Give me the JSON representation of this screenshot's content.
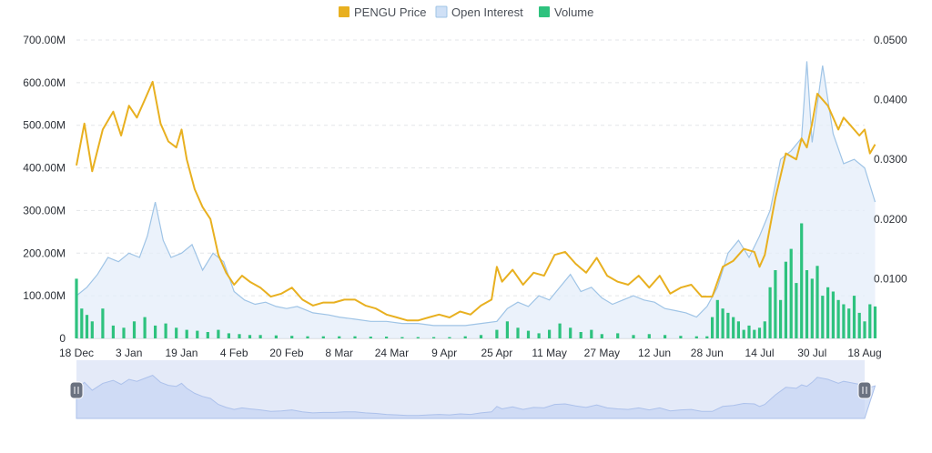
{
  "chart_data": {
    "type": "line",
    "legend": [
      {
        "label": "PENGU Price",
        "color": "#e8b020"
      },
      {
        "label": "Open Interest",
        "color": "#b9d3f2"
      },
      {
        "label": "Volume",
        "color": "#2ec27e"
      }
    ],
    "legend_position": "top-center",
    "x_ticks": [
      "18 Dec",
      "3 Jan",
      "19 Jan",
      "4 Feb",
      "20 Feb",
      "8 Mar",
      "24 Mar",
      "9 Apr",
      "25 Apr",
      "11 May",
      "27 May",
      "12 Jun",
      "28 Jun",
      "14 Jul",
      "30 Jul",
      "18 Aug"
    ],
    "y_left_ticks": [
      "0",
      "100.00M",
      "200.00M",
      "300.00M",
      "400.00M",
      "500.00M",
      "600.00M",
      "700.00M"
    ],
    "y_left_range": [
      0,
      700000000
    ],
    "y_right_ticks": [
      "0.0100",
      "0.0200",
      "0.0300",
      "0.0400",
      "0.0500"
    ],
    "y_right_range": [
      0,
      0.05
    ],
    "grid": "horizontal-dashed",
    "series": [
      {
        "name": "PENGU Price",
        "type": "line",
        "axis": "right",
        "color": "#e8b020",
        "x_ticks_index": [
          0,
          0.15,
          0.3,
          0.5,
          0.7,
          0.85,
          1.0,
          1.15,
          1.3,
          1.45,
          1.6,
          1.75,
          1.9,
          2.0,
          2.1,
          2.25,
          2.4,
          2.55,
          2.7,
          2.85,
          3.0,
          3.15,
          3.3,
          3.5,
          3.7,
          3.9,
          4.1,
          4.3,
          4.5,
          4.7,
          4.9,
          5.1,
          5.3,
          5.5,
          5.7,
          5.9,
          6.1,
          6.3,
          6.5,
          6.7,
          6.9,
          7.1,
          7.3,
          7.5,
          7.7,
          7.9,
          8.0,
          8.1,
          8.3,
          8.5,
          8.7,
          8.9,
          9.1,
          9.3,
          9.5,
          9.7,
          9.9,
          10.1,
          10.3,
          10.5,
          10.7,
          10.9,
          11.1,
          11.3,
          11.5,
          11.7,
          11.9,
          12.1,
          12.3,
          12.5,
          12.7,
          12.9,
          13.0,
          13.1,
          13.3,
          13.5,
          13.7,
          13.8,
          13.9,
          14.0,
          14.1,
          14.3,
          14.5,
          14.6,
          14.7,
          14.9,
          15.0,
          15.1,
          15.2
        ],
        "values": [
          0.029,
          0.036,
          0.028,
          0.035,
          0.038,
          0.034,
          0.039,
          0.037,
          0.04,
          0.043,
          0.036,
          0.033,
          0.032,
          0.035,
          0.03,
          0.025,
          0.022,
          0.02,
          0.014,
          0.011,
          0.009,
          0.0105,
          0.0095,
          0.0085,
          0.007,
          0.0075,
          0.0085,
          0.0065,
          0.0055,
          0.006,
          0.006,
          0.0065,
          0.0065,
          0.0055,
          0.005,
          0.004,
          0.0035,
          0.003,
          0.003,
          0.0035,
          0.004,
          0.0035,
          0.0045,
          0.004,
          0.0055,
          0.0065,
          0.012,
          0.0095,
          0.0115,
          0.009,
          0.011,
          0.0105,
          0.014,
          0.0145,
          0.0125,
          0.011,
          0.0135,
          0.0105,
          0.0095,
          0.009,
          0.0105,
          0.0085,
          0.0105,
          0.0075,
          0.0085,
          0.009,
          0.007,
          0.007,
          0.012,
          0.013,
          0.015,
          0.0145,
          0.012,
          0.014,
          0.0235,
          0.031,
          0.03,
          0.0335,
          0.032,
          0.036,
          0.041,
          0.039,
          0.035,
          0.037,
          0.036,
          0.034,
          0.035,
          0.031,
          0.0325
        ]
      },
      {
        "name": "Open Interest",
        "type": "area",
        "axis": "left",
        "color": "#9fc4e6",
        "x_ticks_index": [
          0,
          0.2,
          0.4,
          0.6,
          0.8,
          1.0,
          1.2,
          1.35,
          1.5,
          1.65,
          1.8,
          2.0,
          2.2,
          2.4,
          2.6,
          2.8,
          3.0,
          3.2,
          3.4,
          3.6,
          3.8,
          4.0,
          4.2,
          4.5,
          4.8,
          5.0,
          5.3,
          5.6,
          5.9,
          6.2,
          6.5,
          6.8,
          7.1,
          7.4,
          7.7,
          8.0,
          8.2,
          8.4,
          8.6,
          8.8,
          9.0,
          9.2,
          9.4,
          9.6,
          9.8,
          10.0,
          10.2,
          10.4,
          10.6,
          10.8,
          11.0,
          11.2,
          11.4,
          11.6,
          11.8,
          12.0,
          12.2,
          12.4,
          12.6,
          12.8,
          13.0,
          13.2,
          13.4,
          13.6,
          13.8,
          13.9,
          14.0,
          14.2,
          14.4,
          14.6,
          14.8,
          15.0,
          15.2
        ],
        "values": [
          100000000,
          120000000,
          150000000,
          190000000,
          180000000,
          200000000,
          190000000,
          240000000,
          320000000,
          230000000,
          190000000,
          200000000,
          220000000,
          160000000,
          200000000,
          180000000,
          110000000,
          90000000,
          80000000,
          85000000,
          75000000,
          70000000,
          75000000,
          60000000,
          55000000,
          50000000,
          45000000,
          40000000,
          40000000,
          35000000,
          35000000,
          30000000,
          30000000,
          30000000,
          35000000,
          40000000,
          70000000,
          85000000,
          75000000,
          100000000,
          90000000,
          120000000,
          150000000,
          110000000,
          120000000,
          95000000,
          80000000,
          90000000,
          100000000,
          90000000,
          85000000,
          70000000,
          65000000,
          60000000,
          50000000,
          75000000,
          120000000,
          200000000,
          230000000,
          190000000,
          240000000,
          300000000,
          420000000,
          440000000,
          470000000,
          650000000,
          460000000,
          640000000,
          480000000,
          410000000,
          420000000,
          400000000,
          320000000,
          350000000
        ]
      },
      {
        "name": "Volume",
        "type": "bar",
        "axis": "left",
        "color": "#2ec27e",
        "x_ticks_index": [
          0,
          0.1,
          0.2,
          0.3,
          0.5,
          0.7,
          0.9,
          1.1,
          1.3,
          1.5,
          1.7,
          1.9,
          2.1,
          2.3,
          2.5,
          2.7,
          2.9,
          3.1,
          3.3,
          3.5,
          3.8,
          4.1,
          4.4,
          4.7,
          5.0,
          5.3,
          5.6,
          5.9,
          6.2,
          6.5,
          6.8,
          7.1,
          7.4,
          7.7,
          8.0,
          8.2,
          8.4,
          8.6,
          8.8,
          9.0,
          9.2,
          9.4,
          9.6,
          9.8,
          10.0,
          10.3,
          10.6,
          10.9,
          11.2,
          11.5,
          11.8,
          12.0,
          12.1,
          12.2,
          12.3,
          12.4,
          12.5,
          12.6,
          12.7,
          12.8,
          12.9,
          13.0,
          13.1,
          13.2,
          13.3,
          13.4,
          13.5,
          13.6,
          13.7,
          13.8,
          13.9,
          14.0,
          14.1,
          14.2,
          14.3,
          14.4,
          14.5,
          14.6,
          14.7,
          14.8,
          14.9,
          15.0,
          15.1,
          15.2
        ],
        "values": [
          140000000,
          70000000,
          55000000,
          40000000,
          70000000,
          30000000,
          25000000,
          40000000,
          50000000,
          30000000,
          35000000,
          25000000,
          20000000,
          18000000,
          15000000,
          20000000,
          12000000,
          10000000,
          8000000,
          8000000,
          7000000,
          6000000,
          5000000,
          5000000,
          5000000,
          5000000,
          4000000,
          4000000,
          3000000,
          3000000,
          3000000,
          3000000,
          5000000,
          8000000,
          20000000,
          40000000,
          25000000,
          18000000,
          12000000,
          20000000,
          35000000,
          25000000,
          15000000,
          20000000,
          10000000,
          12000000,
          8000000,
          10000000,
          8000000,
          6000000,
          5000000,
          5000000,
          50000000,
          90000000,
          70000000,
          60000000,
          50000000,
          40000000,
          20000000,
          30000000,
          20000000,
          25000000,
          40000000,
          120000000,
          160000000,
          90000000,
          180000000,
          210000000,
          130000000,
          270000000,
          160000000,
          140000000,
          170000000,
          100000000,
          120000000,
          110000000,
          90000000,
          80000000,
          70000000,
          100000000,
          60000000,
          40000000,
          80000000,
          75000000
        ]
      }
    ]
  }
}
